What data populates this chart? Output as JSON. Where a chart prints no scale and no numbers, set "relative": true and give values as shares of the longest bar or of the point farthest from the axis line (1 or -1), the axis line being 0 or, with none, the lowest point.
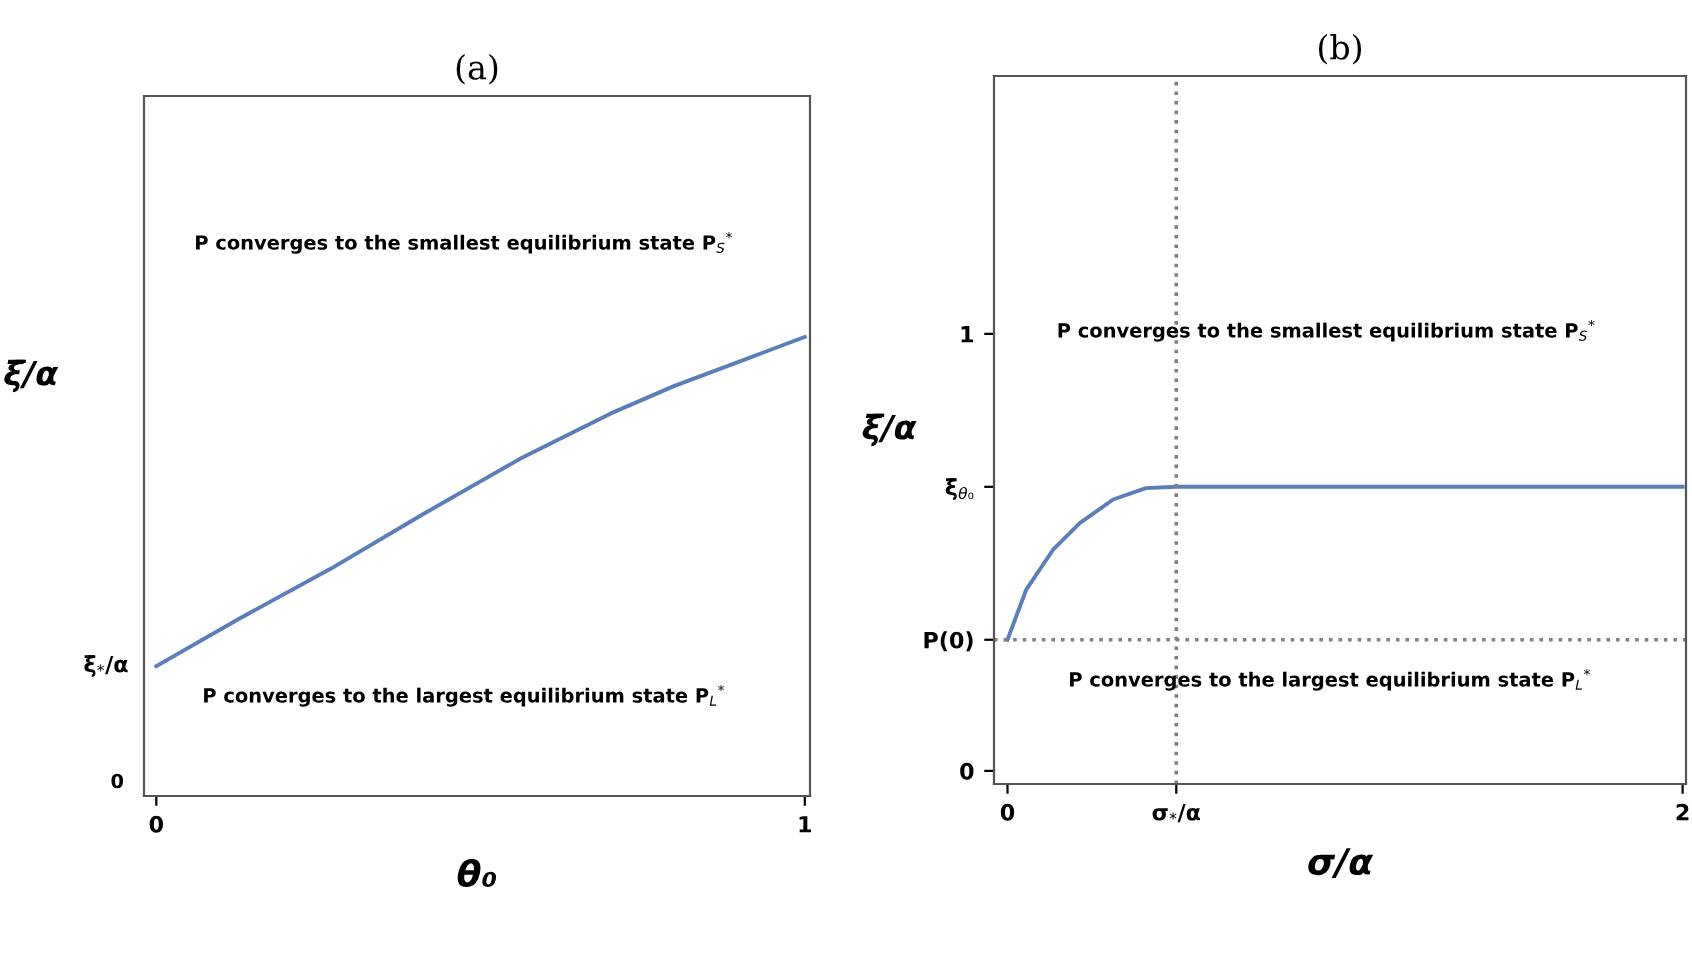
{
  "chart_data": [
    {
      "type": "line",
      "title": "(a)",
      "xlabel": "θ₀",
      "ylabel": "ξ̄/α",
      "relative": true,
      "xlim": [
        -0.019,
        1.008
      ],
      "xticks": [
        0,
        1
      ],
      "series": [
        {
          "color": "#5a7fb8",
          "x": [
            0,
            0.125,
            0.27,
            0.415,
            0.56,
            0.7,
            0.8,
            0.9,
            1.0
          ],
          "values": [
            0.283,
            0.384,
            0.496,
            0.617,
            0.734,
            0.833,
            0.894,
            0.947,
            1.0
          ]
        }
      ],
      "annotations": [
        "P converges to the smallest equilibrium state P$_{S}$$^{*}$",
        "P converges to the largest equilibrium state P$_{L}$$^{*}$",
        "0",
        {
          "text": "ξ̄$_{*}$/α",
          "x": 0,
          "y": 0.283
        }
      ],
      "grid": false,
      "legend": false,
      "marker": "none",
      "line_style": "solid"
    },
    {
      "type": "line",
      "title": "(b)",
      "xlabel": "σ/α",
      "ylabel": "ξ̄/α",
      "xlim": [
        -0.04,
        2.01
      ],
      "xticks": [
        0,
        {
          "value": 0.5,
          "label": "σ$_{*}$/α"
        },
        2
      ],
      "ylim": [
        -0.03,
        1.59
      ],
      "yticks": [
        0,
        {
          "value": 0.3,
          "label": "P(0)"
        },
        {
          "value": 0.65,
          "label": "ξ̄$_{θ₀}$"
        },
        1
      ],
      "series": [
        {
          "color": "#5a7fb8",
          "x": [
            0,
            0.055,
            0.135,
            0.214,
            0.313,
            0.41,
            0.5,
            2.0
          ],
          "values": [
            0.3,
            0.414,
            0.506,
            0.567,
            0.621,
            0.647,
            0.65,
            0.65
          ]
        }
      ],
      "ref_lines": [
        {
          "axis": "x",
          "value": 0.5,
          "color": "#808080",
          "line_style": "dotted"
        },
        {
          "axis": "y",
          "value": 0.3,
          "color": "#808080",
          "line_style": "dotted"
        }
      ],
      "annotations": [
        "P converges to the smallest equilibrium state P$_{S}$$^{*}$",
        "P converges to the largest equilibrium state P$_{L}$$^{*}$"
      ],
      "grid": false,
      "legend": false,
      "marker": "none",
      "line_style": "solid"
    }
  ]
}
